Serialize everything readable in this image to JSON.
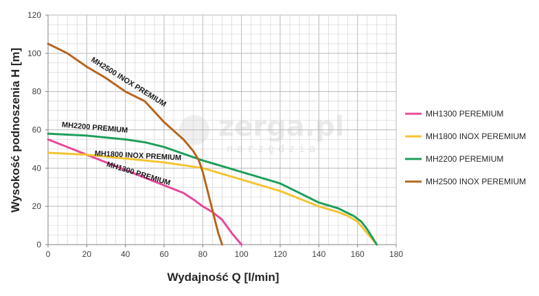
{
  "chart_data": {
    "type": "line",
    "xlabel": "Wydajność Q [l/min]",
    "ylabel": "Wysokość podnoszenia H [m]",
    "xlim": [
      0,
      180
    ],
    "ylim": [
      0,
      120
    ],
    "x_ticks": [
      0,
      20,
      40,
      60,
      80,
      100,
      120,
      140,
      160,
      180
    ],
    "y_ticks": [
      0,
      20,
      40,
      60,
      80,
      100,
      120
    ],
    "grid": true,
    "legend_position": "right",
    "series": [
      {
        "name": "MH1300 PEREMIUM",
        "color": "#e8479a",
        "annotation": "MH1300 PREMIUM",
        "points": [
          [
            0,
            55
          ],
          [
            10,
            51
          ],
          [
            20,
            47
          ],
          [
            30,
            43
          ],
          [
            40,
            39
          ],
          [
            50,
            35
          ],
          [
            60,
            31
          ],
          [
            70,
            27
          ],
          [
            76,
            23
          ],
          [
            80,
            20
          ],
          [
            85,
            17
          ],
          [
            90,
            13
          ],
          [
            95,
            6
          ],
          [
            100,
            0
          ]
        ]
      },
      {
        "name": "MH1800 INOX PEREMIUM",
        "color": "#f4c430",
        "annotation": "MH1800 INOX PREMIUM",
        "points": [
          [
            0,
            48
          ],
          [
            20,
            47
          ],
          [
            40,
            45
          ],
          [
            60,
            43
          ],
          [
            80,
            40
          ],
          [
            100,
            34
          ],
          [
            120,
            28
          ],
          [
            130,
            24
          ],
          [
            140,
            20
          ],
          [
            150,
            17
          ],
          [
            155,
            15
          ],
          [
            160,
            12
          ],
          [
            165,
            6
          ],
          [
            170,
            0
          ]
        ]
      },
      {
        "name": "MH2200 PEREMIUM",
        "color": "#1f9e5a",
        "annotation": "MH2200 PREMIUM",
        "points": [
          [
            0,
            58
          ],
          [
            20,
            57
          ],
          [
            40,
            55
          ],
          [
            50,
            53.5
          ],
          [
            60,
            51
          ],
          [
            70,
            47.5
          ],
          [
            80,
            44
          ],
          [
            90,
            41
          ],
          [
            100,
            38
          ],
          [
            120,
            32
          ],
          [
            130,
            27
          ],
          [
            140,
            22
          ],
          [
            150,
            19
          ],
          [
            158,
            15
          ],
          [
            162,
            12
          ],
          [
            165,
            8
          ],
          [
            170,
            0
          ]
        ]
      },
      {
        "name": "MH2500 INOX PEREMIUM",
        "color": "#b5651d",
        "annotation": "MH2500 INOX PREMIUM",
        "points": [
          [
            0,
            105
          ],
          [
            10,
            100
          ],
          [
            20,
            93
          ],
          [
            30,
            87
          ],
          [
            40,
            80
          ],
          [
            50,
            75
          ],
          [
            60,
            64
          ],
          [
            70,
            55
          ],
          [
            75,
            49
          ],
          [
            78,
            44
          ],
          [
            80,
            38
          ],
          [
            82,
            30
          ],
          [
            84,
            22
          ],
          [
            86,
            14
          ],
          [
            88,
            6
          ],
          [
            90,
            0
          ]
        ]
      }
    ]
  },
  "watermark": {
    "main": "zerga.pl",
    "sub": "narzędzia"
  }
}
